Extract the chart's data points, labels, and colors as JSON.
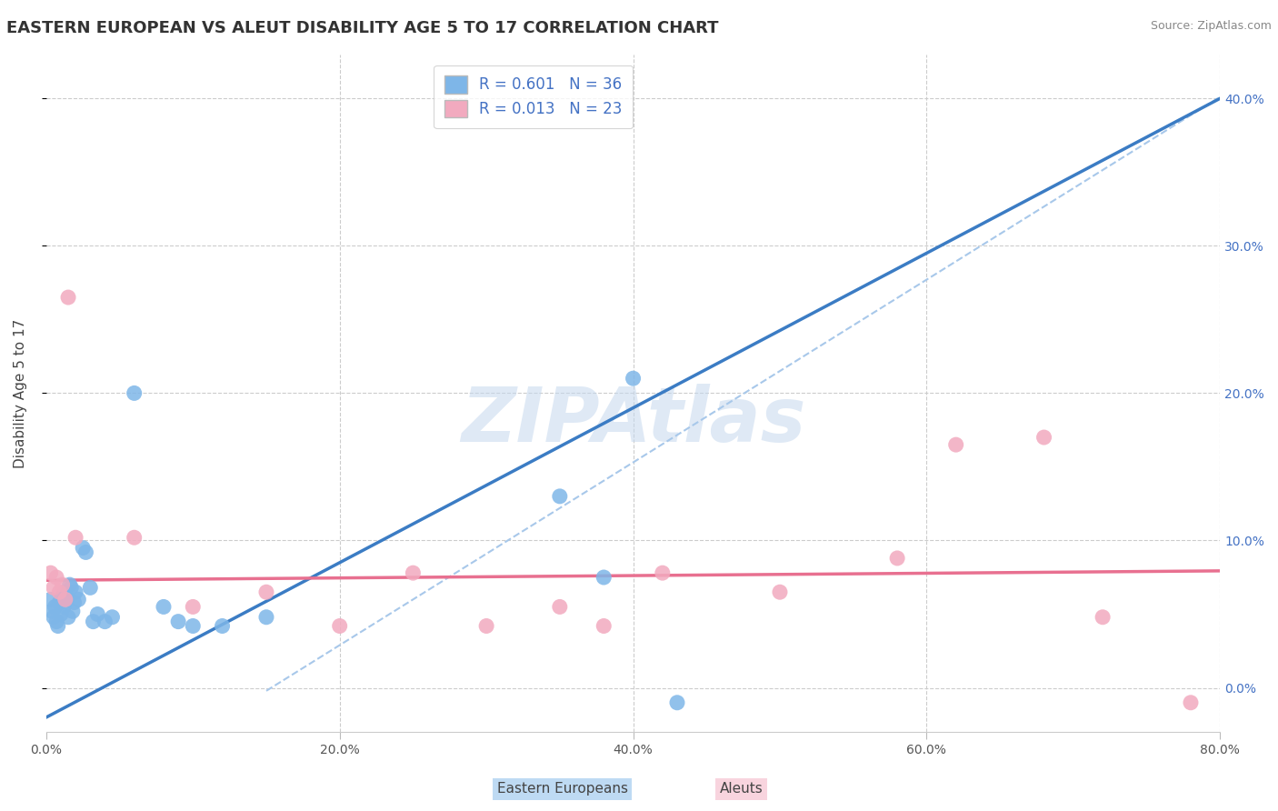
{
  "title": "EASTERN EUROPEAN VS ALEUT DISABILITY AGE 5 TO 17 CORRELATION CHART",
  "source": "Source: ZipAtlas.com",
  "ylabel": "Disability Age 5 to 17",
  "xlim": [
    0,
    0.8
  ],
  "ylim": [
    -0.03,
    0.43
  ],
  "xticks": [
    0.0,
    0.2,
    0.4,
    0.6,
    0.8
  ],
  "yticks": [
    0.0,
    0.1,
    0.2,
    0.3,
    0.4
  ],
  "blue_R": "0.601",
  "blue_N": "36",
  "pink_R": "0.013",
  "pink_N": "23",
  "blue_scatter_color": "#7EB6E8",
  "pink_scatter_color": "#F2AABF",
  "blue_line_color": "#3B7CC4",
  "pink_line_color": "#E87090",
  "dashed_line_color": "#A8C8EA",
  "bg_color": "#FFFFFF",
  "grid_color": "#CCCCCC",
  "axis_tick_color": "#4472C4",
  "blue_scatter": [
    [
      0.003,
      0.06
    ],
    [
      0.004,
      0.052
    ],
    [
      0.005,
      0.048
    ],
    [
      0.006,
      0.055
    ],
    [
      0.007,
      0.045
    ],
    [
      0.008,
      0.042
    ],
    [
      0.009,
      0.058
    ],
    [
      0.01,
      0.05
    ],
    [
      0.011,
      0.062
    ],
    [
      0.012,
      0.055
    ],
    [
      0.013,
      0.065
    ],
    [
      0.014,
      0.06
    ],
    [
      0.015,
      0.048
    ],
    [
      0.016,
      0.07
    ],
    [
      0.017,
      0.068
    ],
    [
      0.018,
      0.052
    ],
    [
      0.019,
      0.058
    ],
    [
      0.02,
      0.065
    ],
    [
      0.022,
      0.06
    ],
    [
      0.025,
      0.095
    ],
    [
      0.027,
      0.092
    ],
    [
      0.03,
      0.068
    ],
    [
      0.032,
      0.045
    ],
    [
      0.035,
      0.05
    ],
    [
      0.04,
      0.045
    ],
    [
      0.045,
      0.048
    ],
    [
      0.06,
      0.2
    ],
    [
      0.08,
      0.055
    ],
    [
      0.09,
      0.045
    ],
    [
      0.1,
      0.042
    ],
    [
      0.12,
      0.042
    ],
    [
      0.15,
      0.048
    ],
    [
      0.35,
      0.13
    ],
    [
      0.38,
      0.075
    ],
    [
      0.4,
      0.21
    ],
    [
      0.43,
      -0.01
    ]
  ],
  "pink_scatter": [
    [
      0.003,
      0.078
    ],
    [
      0.005,
      0.068
    ],
    [
      0.007,
      0.075
    ],
    [
      0.009,
      0.065
    ],
    [
      0.011,
      0.07
    ],
    [
      0.013,
      0.06
    ],
    [
      0.015,
      0.265
    ],
    [
      0.02,
      0.102
    ],
    [
      0.06,
      0.102
    ],
    [
      0.1,
      0.055
    ],
    [
      0.15,
      0.065
    ],
    [
      0.2,
      0.042
    ],
    [
      0.25,
      0.078
    ],
    [
      0.3,
      0.042
    ],
    [
      0.35,
      0.055
    ],
    [
      0.38,
      0.042
    ],
    [
      0.42,
      0.078
    ],
    [
      0.5,
      0.065
    ],
    [
      0.58,
      0.088
    ],
    [
      0.62,
      0.165
    ],
    [
      0.68,
      0.17
    ],
    [
      0.72,
      0.048
    ],
    [
      0.78,
      -0.01
    ]
  ],
  "watermark_text": "ZIPAtlas",
  "watermark_color": "#C5D8EE",
  "title_fontsize": 13,
  "label_fontsize": 11,
  "tick_fontsize": 10,
  "legend_fontsize": 12
}
